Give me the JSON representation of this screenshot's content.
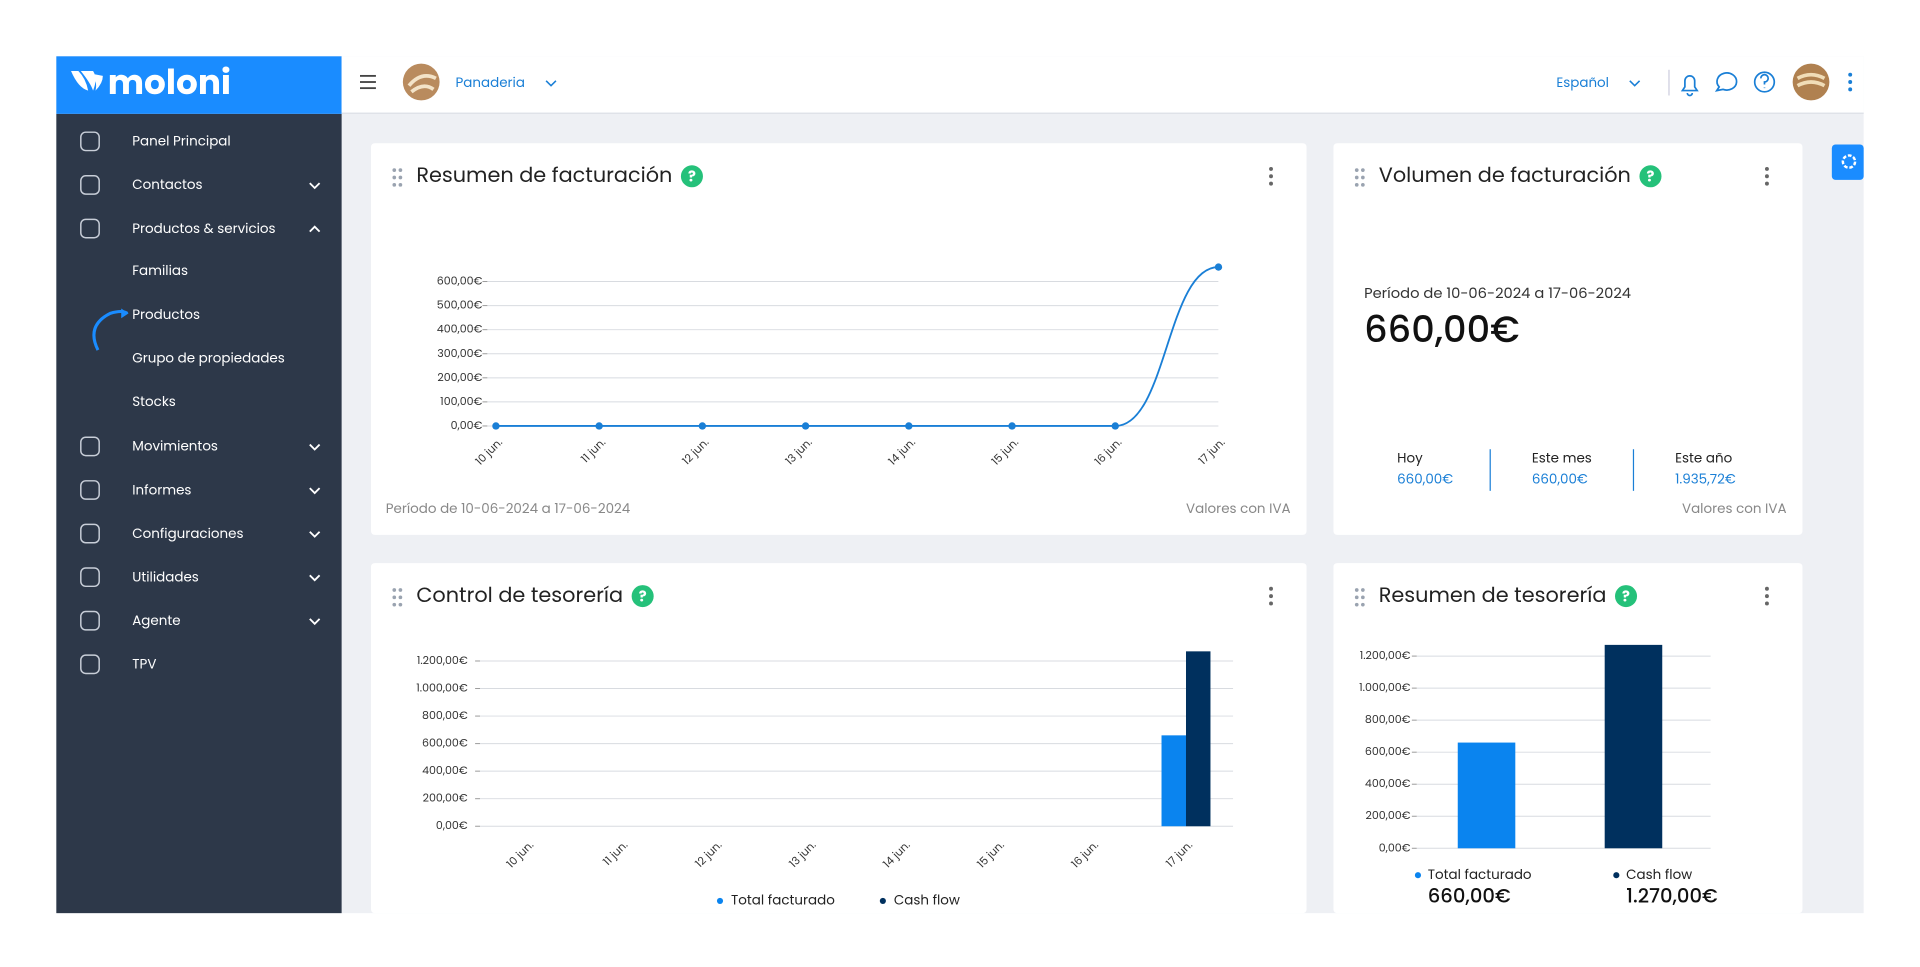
{
  "sidebar": {
    "logo": "moloni",
    "menu": [
      {
        "label": "Panel Principal"
      },
      {
        "label": "Contactos",
        "expanded": false
      },
      {
        "label": "Productos & servicios",
        "expanded": true,
        "children": [
          {
            "label": "Familias"
          },
          {
            "label": "Productos"
          },
          {
            "label": "Grupo de propiedades"
          },
          {
            "label": "Stocks"
          }
        ]
      },
      {
        "label": "Movimientos",
        "expanded": false
      },
      {
        "label": "Informes",
        "expanded": false
      },
      {
        "label": "Configuraciones",
        "expanded": false
      },
      {
        "label": "Utilidades",
        "expanded": false
      },
      {
        "label": "Agente",
        "expanded": false
      },
      {
        "label": "TPV"
      }
    ]
  },
  "header": {
    "company": "Panaderia",
    "language": "Español"
  },
  "help_icon": "?",
  "billing_summary": {
    "period": "Período de 10-06-2024 a 17-06-2024",
    "note": "Valores con IVA"
  },
  "billing_volume": {
    "title": "Volumen de facturación",
    "period": "Período de 10-06-2024 a 17-06-2024",
    "total": "660,00€",
    "stats": [
      {
        "label": "Hoy",
        "value": "660,00€"
      },
      {
        "label": "Este mes",
        "value": "660,00€"
      },
      {
        "label": "Este año",
        "value": "1.935,72€"
      }
    ],
    "note": "Valores con IVA"
  },
  "chart_data": [
    {
      "type": "line",
      "title": "Resumen de facturación",
      "categories": [
        "10 jun.",
        "11 jun.",
        "12 jun.",
        "13 jun.",
        "14 jun.",
        "15 jun.",
        "16 jun.",
        "17 jun."
      ],
      "values": [
        0,
        0,
        0,
        0,
        0,
        0,
        0,
        660
      ],
      "color": "#1a7fd6",
      "ylim": [
        0,
        600
      ],
      "yticks": [
        {
          "value": 0,
          "label": "0,00€"
        },
        {
          "value": 100,
          "label": "100,00€"
        },
        {
          "value": 200,
          "label": "200,00€"
        },
        {
          "value": 300,
          "label": "300,00€"
        },
        {
          "value": 400,
          "label": "400,00€"
        },
        {
          "value": 500,
          "label": "500,00€"
        },
        {
          "value": 600,
          "label": "600,00€"
        }
      ],
      "grid": true
    },
    {
      "type": "bar",
      "title": "Control de tesorería",
      "categories": [
        "10 jun.",
        "11 jun.",
        "12 jun.",
        "13 jun.",
        "14 jun.",
        "15 jun.",
        "16 jun.",
        "17 jun."
      ],
      "series": [
        {
          "name": "Total facturado",
          "color": "#0a84ef",
          "values": [
            0,
            0,
            0,
            0,
            0,
            0,
            0,
            660
          ]
        },
        {
          "name": "Cash flow",
          "color": "#00305e",
          "values": [
            0,
            0,
            0,
            0,
            0,
            0,
            0,
            1270
          ]
        }
      ],
      "ylim": [
        0,
        1200
      ],
      "yticks": [
        {
          "value": 0,
          "label": "0,00€"
        },
        {
          "value": 200,
          "label": "200,00€"
        },
        {
          "value": 400,
          "label": "400,00€"
        },
        {
          "value": 600,
          "label": "600,00€"
        },
        {
          "value": 800,
          "label": "800,00€"
        },
        {
          "value": 1000,
          "label": "1.000,00€"
        },
        {
          "value": 1200,
          "label": "1.200,00€"
        }
      ],
      "grid": true,
      "legend": "bottom"
    },
    {
      "type": "bar",
      "title": "Resumen de tesorería",
      "series": [
        {
          "name": "Total facturado",
          "color": "#0a84ef",
          "values": [
            660
          ],
          "value_labels": [
            "660,00€"
          ]
        },
        {
          "name": "Cash flow",
          "color": "#00305e",
          "values": [
            1270
          ],
          "value_labels": [
            "1.270,00€"
          ]
        }
      ],
      "ylim": [
        0,
        1200
      ],
      "yticks": [
        {
          "value": 0,
          "label": "0,00€"
        },
        {
          "value": 200,
          "label": "200,00€"
        },
        {
          "value": 400,
          "label": "400,00€"
        },
        {
          "value": 600,
          "label": "600,00€"
        },
        {
          "value": 800,
          "label": "800,00€"
        },
        {
          "value": 1000,
          "label": "1.000,00€"
        },
        {
          "value": 1200,
          "label": "1.200,00€"
        }
      ],
      "grid": true,
      "legend": "bottom"
    }
  ]
}
